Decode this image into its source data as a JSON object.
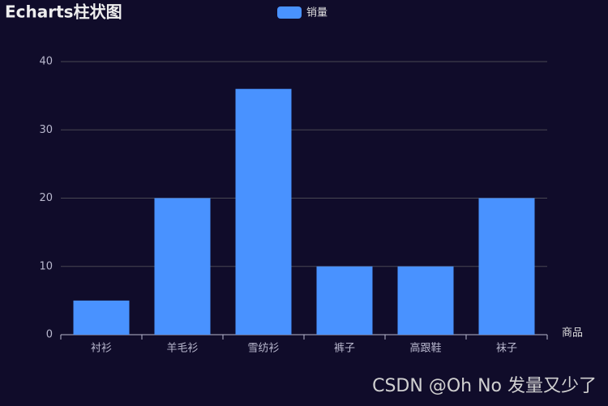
{
  "chart_data": {
    "type": "bar",
    "title": "Echarts柱状图",
    "x_label": "商品",
    "categories": [
      "衬衫",
      "羊毛衫",
      "雪纺衫",
      "裤子",
      "高跟鞋",
      "袜子"
    ],
    "series": [
      {
        "name": "销量",
        "color": "#4992ff",
        "values": [
          5,
          20,
          36,
          10,
          10,
          20
        ]
      }
    ],
    "ylim": [
      0,
      40
    ],
    "yticks": [
      0,
      10,
      20,
      30,
      40
    ],
    "grid": true,
    "legend": "top"
  },
  "watermark": "CSDN @Oh No 发量又少了"
}
